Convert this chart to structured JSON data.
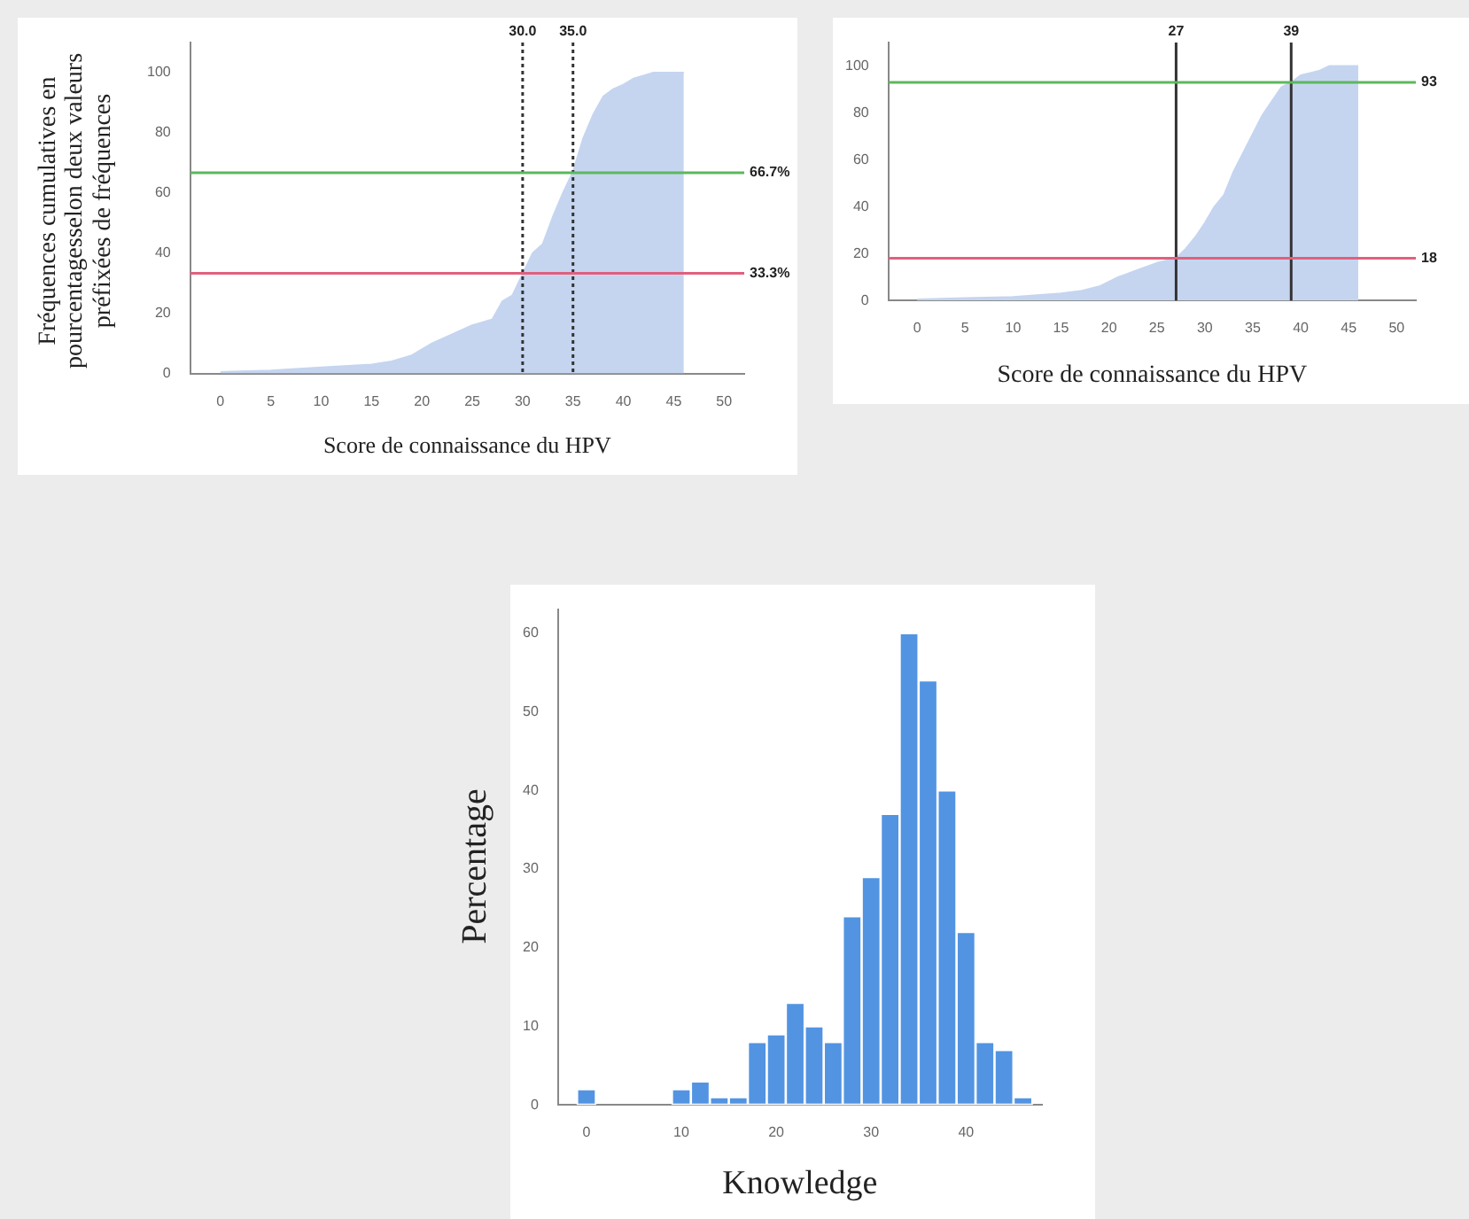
{
  "chart_data": [
    {
      "type": "area",
      "xlabel": "Score de connaissance du HPV",
      "ylabel": "Fréquences cumulatives en pourcentagesselon deux valeurs préfixées de fréquences",
      "color": "#c5d5f0",
      "x": [
        0,
        5,
        10,
        15,
        17,
        19,
        21,
        23,
        25,
        26,
        27,
        28,
        29,
        30,
        31,
        32,
        33,
        34,
        35,
        36,
        37,
        38,
        39,
        40,
        41,
        42,
        43,
        44,
        45,
        46
      ],
      "values": [
        0.5,
        1,
        2,
        3,
        4,
        6,
        10,
        13,
        16,
        17,
        18,
        24,
        26,
        33,
        40,
        43,
        52,
        60,
        67,
        78,
        86,
        92,
        94.5,
        96,
        98,
        99,
        100,
        100,
        100,
        100
      ],
      "xlim": [
        -3,
        52
      ],
      "xticks": [
        0,
        5,
        10,
        15,
        20,
        25,
        30,
        35,
        40,
        45,
        50
      ],
      "ylim": [
        0,
        110
      ],
      "yticks": [
        0,
        20,
        40,
        60,
        80,
        100
      ],
      "ref_lines": [
        {
          "axis": "x",
          "value": 30,
          "label": "30.0",
          "color": "#333333",
          "line_style": "dotted"
        },
        {
          "axis": "x",
          "value": 35,
          "label": "35.0",
          "color": "#333333",
          "line_style": "dotted"
        },
        {
          "axis": "y",
          "value": 66.7,
          "label": "66.7%",
          "color": "#5cb85c"
        },
        {
          "axis": "y",
          "value": 33.3,
          "label": "33.3%",
          "color": "#e0607e"
        }
      ]
    },
    {
      "type": "area",
      "xlabel": "Score de connaissance du HPV",
      "color": "#c5d5f0",
      "x": [
        0,
        5,
        10,
        15,
        17,
        19,
        21,
        23,
        25,
        27,
        28,
        29,
        30,
        31,
        32,
        33,
        34,
        35,
        36,
        37,
        38,
        39,
        40,
        41,
        42,
        43,
        46
      ],
      "values": [
        0.5,
        1,
        1.5,
        3,
        4,
        6,
        10,
        13,
        16,
        18,
        22,
        27,
        33,
        40,
        45,
        55,
        63,
        71,
        79,
        85,
        91,
        93,
        96,
        97,
        98,
        100,
        100
      ],
      "xlim": [
        -3,
        52
      ],
      "xticks": [
        0,
        5,
        10,
        15,
        20,
        25,
        30,
        35,
        40,
        45,
        50
      ],
      "ylim": [
        0,
        110
      ],
      "yticks": [
        0,
        20,
        40,
        60,
        80,
        100
      ],
      "ref_lines": [
        {
          "axis": "x",
          "value": 27,
          "label": "27",
          "color": "#333333",
          "line_style": "solid"
        },
        {
          "axis": "x",
          "value": 39,
          "label": "39",
          "color": "#333333",
          "line_style": "solid"
        },
        {
          "axis": "y",
          "value": 93,
          "label": "93",
          "color": "#5cb85c"
        },
        {
          "axis": "y",
          "value": 18,
          "label": "18",
          "color": "#e0607e"
        }
      ]
    },
    {
      "type": "histogram",
      "xlabel": "Knowledge",
      "ylabel": "Percentage",
      "color": "#5294e2",
      "bins": [
        -1,
        1,
        3,
        5,
        7,
        9,
        11,
        13,
        15,
        17,
        19,
        21,
        23,
        25,
        27,
        29,
        31,
        33,
        35,
        37,
        39,
        41,
        43,
        45,
        47
      ],
      "values": [
        2,
        0,
        0,
        0,
        0,
        2,
        3,
        1,
        1,
        8,
        9,
        13,
        10,
        8,
        24,
        29,
        37,
        60,
        54,
        40,
        22,
        8,
        7,
        1
      ],
      "xlim": [
        -3,
        48
      ],
      "xticks": [
        0,
        10,
        20,
        30,
        40
      ],
      "ylim": [
        0,
        63
      ],
      "yticks": [
        0,
        10,
        20,
        30,
        40,
        50,
        60
      ]
    }
  ]
}
